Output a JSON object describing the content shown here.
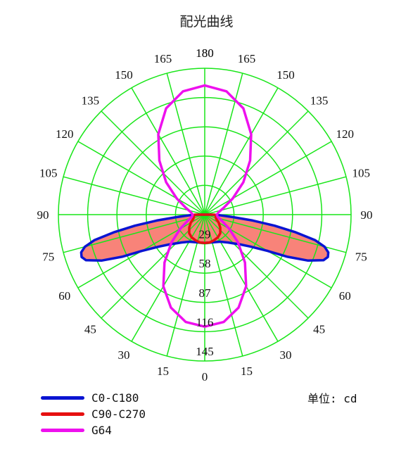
{
  "chart_data": {
    "type": "polar",
    "title": "配光曲线",
    "unit_label": "单位: cd",
    "angle_ticks_left": [
      "180",
      "165",
      "150",
      "135",
      "120",
      "105",
      "90",
      "75",
      "60",
      "45",
      "30",
      "15",
      "0"
    ],
    "angle_ticks_right": [
      "180",
      "165",
      "150",
      "135",
      "120",
      "105",
      "90",
      "75",
      "60",
      "45",
      "30",
      "15"
    ],
    "radial_ticks": [
      "29",
      "58",
      "87",
      "116",
      "145"
    ],
    "rmax": 145,
    "grid": true,
    "grid_color": "#19e619",
    "fill_color": "#f88379",
    "legend_position": "bottom-left",
    "series": [
      {
        "name": "C0-C180",
        "color": "#0a14d2",
        "filled": true,
        "angles": [
          0,
          10,
          20,
          30,
          40,
          50,
          55,
          60,
          63,
          66,
          69,
          71,
          73,
          75,
          77,
          79,
          81,
          83,
          85,
          88,
          90
        ],
        "values": [
          28,
          28,
          29,
          31,
          36,
          46,
          55,
          72,
          92,
          112,
          126,
          129,
          128,
          123,
          112,
          92,
          70,
          48,
          28,
          14,
          6
        ]
      },
      {
        "name": "C90-C270",
        "color": "#e61010",
        "filled": true,
        "angles": [
          0,
          10,
          20,
          30,
          40,
          50,
          60,
          70,
          80,
          85,
          90
        ],
        "values": [
          28,
          28,
          27,
          26,
          24,
          20,
          16,
          12,
          11,
          11,
          10
        ]
      },
      {
        "name": "G64",
        "color": "#ee10ee",
        "filled": false,
        "angles": [
          0,
          10,
          20,
          30,
          40,
          50,
          60,
          70,
          80,
          90,
          100,
          110,
          120,
          130,
          140,
          150,
          160,
          170,
          180
        ],
        "values": [
          111,
          108,
          98,
          82,
          62,
          43,
          28,
          18,
          13,
          12,
          14,
          20,
          32,
          50,
          70,
          92,
          112,
          124,
          128
        ]
      }
    ]
  }
}
